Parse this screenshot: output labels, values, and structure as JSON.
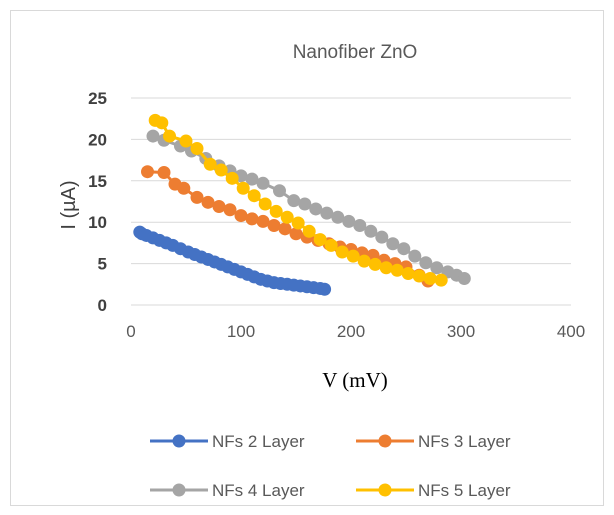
{
  "chart_data": {
    "type": "scatter",
    "title": "Nanofiber ZnO",
    "xlabel": "V (mV)",
    "ylabel": "I (µA)",
    "xlim": [
      0,
      400
    ],
    "ylim": [
      0,
      25
    ],
    "xticks": [
      "0",
      "100",
      "200",
      "300",
      "400"
    ],
    "yticks": [
      "0",
      "5",
      "10",
      "15",
      "20",
      "25"
    ],
    "grid": true,
    "legend_position": "bottom",
    "series": [
      {
        "name": "NFs 2 Layer",
        "color": "#4472C4",
        "x": [
          8,
          10,
          14,
          20,
          26,
          32,
          38,
          45,
          52,
          58,
          64,
          70,
          76,
          82,
          88,
          94,
          100,
          106,
          112,
          118,
          124,
          130,
          136,
          142,
          148,
          154,
          160,
          166,
          172,
          176
        ],
        "y": [
          8.8,
          8.6,
          8.4,
          8.1,
          7.8,
          7.5,
          7.2,
          6.8,
          6.4,
          6.1,
          5.8,
          5.5,
          5.2,
          4.9,
          4.6,
          4.3,
          4.0,
          3.7,
          3.4,
          3.1,
          2.9,
          2.7,
          2.6,
          2.5,
          2.4,
          2.3,
          2.2,
          2.1,
          2.0,
          1.9
        ]
      },
      {
        "name": "NFs 3 Layer",
        "color": "#ED7D31",
        "x": [
          15,
          30,
          40,
          48,
          60,
          70,
          80,
          90,
          100,
          110,
          120,
          130,
          140,
          150,
          160,
          170,
          180,
          190,
          200,
          210,
          220,
          230,
          240,
          250,
          262,
          270
        ],
        "y": [
          16.1,
          16.0,
          14.6,
          14.1,
          13.0,
          12.4,
          11.9,
          11.5,
          10.8,
          10.4,
          10.1,
          9.6,
          9.2,
          8.6,
          8.2,
          7.8,
          7.4,
          7.0,
          6.7,
          6.3,
          6.0,
          5.4,
          5.0,
          4.6,
          3.6,
          2.9
        ]
      },
      {
        "name": "NFs 4 Layer",
        "color": "#A5A5A5",
        "x": [
          20,
          30,
          45,
          55,
          68,
          80,
          90,
          100,
          110,
          120,
          135,
          148,
          158,
          168,
          178,
          188,
          198,
          208,
          218,
          228,
          238,
          248,
          258,
          268,
          278,
          288,
          296,
          303
        ],
        "y": [
          20.4,
          19.9,
          19.2,
          18.6,
          17.7,
          16.8,
          16.2,
          15.6,
          15.2,
          14.7,
          13.8,
          12.6,
          12.2,
          11.6,
          11.1,
          10.6,
          10.1,
          9.6,
          8.9,
          8.2,
          7.4,
          6.8,
          5.9,
          5.1,
          4.5,
          4.0,
          3.6,
          3.2
        ]
      },
      {
        "name": "NFs 5 Layer",
        "color": "#FFC000",
        "x": [
          22,
          28,
          35,
          50,
          60,
          72,
          82,
          92,
          102,
          112,
          122,
          132,
          142,
          152,
          162,
          172,
          182,
          192,
          202,
          212,
          222,
          232,
          242,
          252,
          262,
          272,
          282
        ],
        "y": [
          22.3,
          22.0,
          20.4,
          19.8,
          18.9,
          17.0,
          16.3,
          15.3,
          14.1,
          13.2,
          12.2,
          11.3,
          10.6,
          9.9,
          8.9,
          7.9,
          7.2,
          6.4,
          5.9,
          5.3,
          4.9,
          4.5,
          4.2,
          3.8,
          3.5,
          3.2,
          3.0
        ]
      }
    ]
  }
}
